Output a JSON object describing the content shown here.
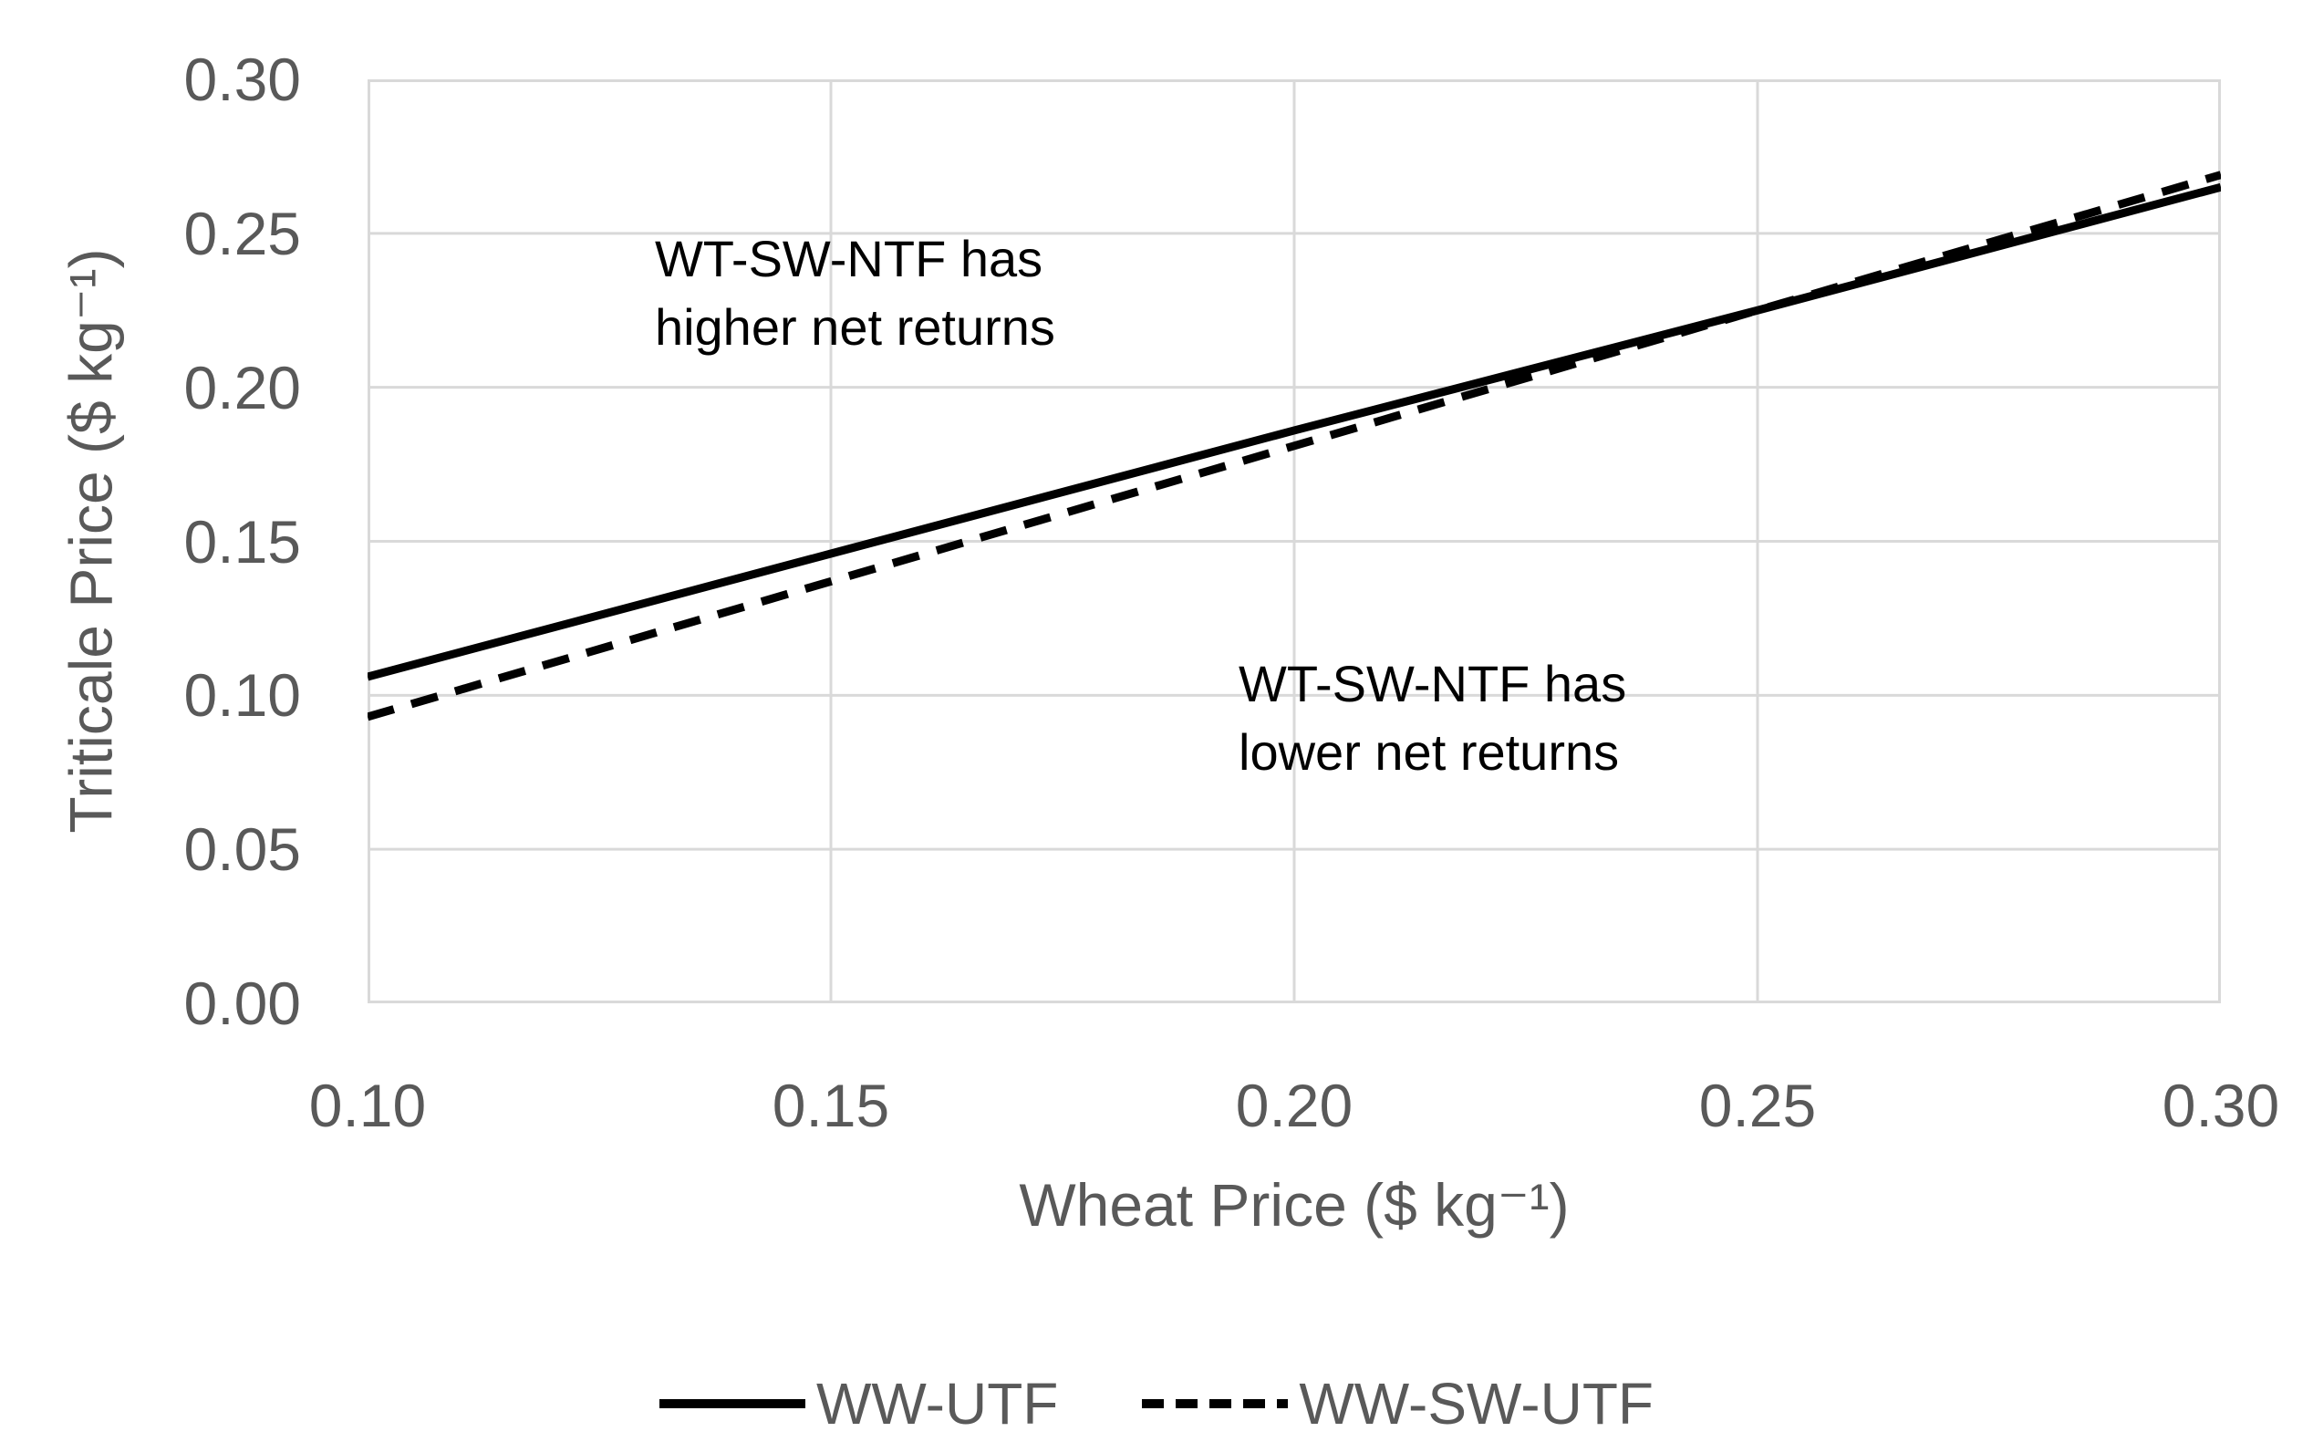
{
  "chart_data": {
    "type": "line",
    "title": "",
    "xlabel": "Wheat Price ($ kg⁻¹)",
    "ylabel": "Triticale Price ($ kg⁻¹)",
    "xlim": [
      0.1,
      0.3
    ],
    "ylim": [
      0.0,
      0.3
    ],
    "x_ticks": [
      "0.10",
      "0.15",
      "0.20",
      "0.25",
      "0.30"
    ],
    "y_ticks": [
      "0.30",
      "0.25",
      "0.20",
      "0.15",
      "0.10",
      "0.05",
      "0.00"
    ],
    "grid": true,
    "legend_position": "bottom",
    "x": [
      0.1,
      0.15,
      0.2,
      0.25,
      0.3
    ],
    "series": [
      {
        "name": "WW-UTF",
        "style": "solid",
        "color": "#000000",
        "values": [
          0.106,
          0.146,
          0.186,
          0.225,
          0.265
        ]
      },
      {
        "name": "WW-SW-UTF",
        "style": "dashed",
        "color": "#000000",
        "values": [
          0.093,
          0.137,
          0.181,
          0.225,
          0.269
        ]
      }
    ],
    "annotations": [
      {
        "lines": [
          "WT-SW-NTF has",
          "higher net returns"
        ],
        "x": 0.131,
        "y": 0.253
      },
      {
        "lines": [
          "WT-SW-NTF has",
          "lower net returns"
        ],
        "x": 0.194,
        "y": 0.115
      }
    ]
  },
  "colors": {
    "axis_text": "#595959",
    "gridline": "#D9D9D9",
    "plot_border": "#D9D9D9",
    "series_line": "#000000",
    "annotation_text": "#000000",
    "background": "#FFFFFF"
  }
}
